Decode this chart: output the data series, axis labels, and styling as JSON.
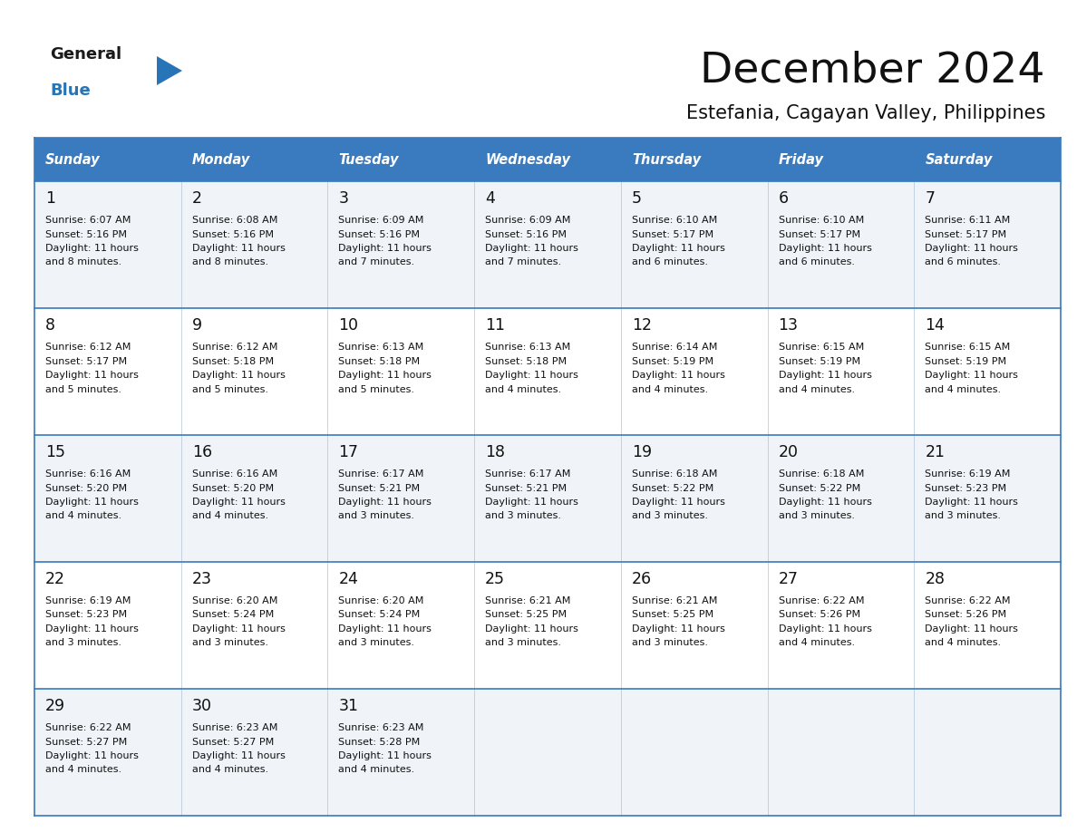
{
  "title": "December 2024",
  "subtitle": "Estefania, Cagayan Valley, Philippines",
  "header_color": "#3a7abf",
  "header_text_color": "#ffffff",
  "cell_bg_even": "#f0f4f8",
  "cell_bg_odd": "#ffffff",
  "border_color": "#3a7abf",
  "day_headers": [
    "Sunday",
    "Monday",
    "Tuesday",
    "Wednesday",
    "Thursday",
    "Friday",
    "Saturday"
  ],
  "days": [
    {
      "day": 1,
      "col": 0,
      "row": 0,
      "sunrise": "6:07 AM",
      "sunset": "5:16 PM",
      "daylight": "11 hours",
      "daylight2": "and 8 minutes."
    },
    {
      "day": 2,
      "col": 1,
      "row": 0,
      "sunrise": "6:08 AM",
      "sunset": "5:16 PM",
      "daylight": "11 hours",
      "daylight2": "and 8 minutes."
    },
    {
      "day": 3,
      "col": 2,
      "row": 0,
      "sunrise": "6:09 AM",
      "sunset": "5:16 PM",
      "daylight": "11 hours",
      "daylight2": "and 7 minutes."
    },
    {
      "day": 4,
      "col": 3,
      "row": 0,
      "sunrise": "6:09 AM",
      "sunset": "5:16 PM",
      "daylight": "11 hours",
      "daylight2": "and 7 minutes."
    },
    {
      "day": 5,
      "col": 4,
      "row": 0,
      "sunrise": "6:10 AM",
      "sunset": "5:17 PM",
      "daylight": "11 hours",
      "daylight2": "and 6 minutes."
    },
    {
      "day": 6,
      "col": 5,
      "row": 0,
      "sunrise": "6:10 AM",
      "sunset": "5:17 PM",
      "daylight": "11 hours",
      "daylight2": "and 6 minutes."
    },
    {
      "day": 7,
      "col": 6,
      "row": 0,
      "sunrise": "6:11 AM",
      "sunset": "5:17 PM",
      "daylight": "11 hours",
      "daylight2": "and 6 minutes."
    },
    {
      "day": 8,
      "col": 0,
      "row": 1,
      "sunrise": "6:12 AM",
      "sunset": "5:17 PM",
      "daylight": "11 hours",
      "daylight2": "and 5 minutes."
    },
    {
      "day": 9,
      "col": 1,
      "row": 1,
      "sunrise": "6:12 AM",
      "sunset": "5:18 PM",
      "daylight": "11 hours",
      "daylight2": "and 5 minutes."
    },
    {
      "day": 10,
      "col": 2,
      "row": 1,
      "sunrise": "6:13 AM",
      "sunset": "5:18 PM",
      "daylight": "11 hours",
      "daylight2": "and 5 minutes."
    },
    {
      "day": 11,
      "col": 3,
      "row": 1,
      "sunrise": "6:13 AM",
      "sunset": "5:18 PM",
      "daylight": "11 hours",
      "daylight2": "and 4 minutes."
    },
    {
      "day": 12,
      "col": 4,
      "row": 1,
      "sunrise": "6:14 AM",
      "sunset": "5:19 PM",
      "daylight": "11 hours",
      "daylight2": "and 4 minutes."
    },
    {
      "day": 13,
      "col": 5,
      "row": 1,
      "sunrise": "6:15 AM",
      "sunset": "5:19 PM",
      "daylight": "11 hours",
      "daylight2": "and 4 minutes."
    },
    {
      "day": 14,
      "col": 6,
      "row": 1,
      "sunrise": "6:15 AM",
      "sunset": "5:19 PM",
      "daylight": "11 hours",
      "daylight2": "and 4 minutes."
    },
    {
      "day": 15,
      "col": 0,
      "row": 2,
      "sunrise": "6:16 AM",
      "sunset": "5:20 PM",
      "daylight": "11 hours",
      "daylight2": "and 4 minutes."
    },
    {
      "day": 16,
      "col": 1,
      "row": 2,
      "sunrise": "6:16 AM",
      "sunset": "5:20 PM",
      "daylight": "11 hours",
      "daylight2": "and 4 minutes."
    },
    {
      "day": 17,
      "col": 2,
      "row": 2,
      "sunrise": "6:17 AM",
      "sunset": "5:21 PM",
      "daylight": "11 hours",
      "daylight2": "and 3 minutes."
    },
    {
      "day": 18,
      "col": 3,
      "row": 2,
      "sunrise": "6:17 AM",
      "sunset": "5:21 PM",
      "daylight": "11 hours",
      "daylight2": "and 3 minutes."
    },
    {
      "day": 19,
      "col": 4,
      "row": 2,
      "sunrise": "6:18 AM",
      "sunset": "5:22 PM",
      "daylight": "11 hours",
      "daylight2": "and 3 minutes."
    },
    {
      "day": 20,
      "col": 5,
      "row": 2,
      "sunrise": "6:18 AM",
      "sunset": "5:22 PM",
      "daylight": "11 hours",
      "daylight2": "and 3 minutes."
    },
    {
      "day": 21,
      "col": 6,
      "row": 2,
      "sunrise": "6:19 AM",
      "sunset": "5:23 PM",
      "daylight": "11 hours",
      "daylight2": "and 3 minutes."
    },
    {
      "day": 22,
      "col": 0,
      "row": 3,
      "sunrise": "6:19 AM",
      "sunset": "5:23 PM",
      "daylight": "11 hours",
      "daylight2": "and 3 minutes."
    },
    {
      "day": 23,
      "col": 1,
      "row": 3,
      "sunrise": "6:20 AM",
      "sunset": "5:24 PM",
      "daylight": "11 hours",
      "daylight2": "and 3 minutes."
    },
    {
      "day": 24,
      "col": 2,
      "row": 3,
      "sunrise": "6:20 AM",
      "sunset": "5:24 PM",
      "daylight": "11 hours",
      "daylight2": "and 3 minutes."
    },
    {
      "day": 25,
      "col": 3,
      "row": 3,
      "sunrise": "6:21 AM",
      "sunset": "5:25 PM",
      "daylight": "11 hours",
      "daylight2": "and 3 minutes."
    },
    {
      "day": 26,
      "col": 4,
      "row": 3,
      "sunrise": "6:21 AM",
      "sunset": "5:25 PM",
      "daylight": "11 hours",
      "daylight2": "and 3 minutes."
    },
    {
      "day": 27,
      "col": 5,
      "row": 3,
      "sunrise": "6:22 AM",
      "sunset": "5:26 PM",
      "daylight": "11 hours",
      "daylight2": "and 4 minutes."
    },
    {
      "day": 28,
      "col": 6,
      "row": 3,
      "sunrise": "6:22 AM",
      "sunset": "5:26 PM",
      "daylight": "11 hours",
      "daylight2": "and 4 minutes."
    },
    {
      "day": 29,
      "col": 0,
      "row": 4,
      "sunrise": "6:22 AM",
      "sunset": "5:27 PM",
      "daylight": "11 hours",
      "daylight2": "and 4 minutes."
    },
    {
      "day": 30,
      "col": 1,
      "row": 4,
      "sunrise": "6:23 AM",
      "sunset": "5:27 PM",
      "daylight": "11 hours",
      "daylight2": "and 4 minutes."
    },
    {
      "day": 31,
      "col": 2,
      "row": 4,
      "sunrise": "6:23 AM",
      "sunset": "5:28 PM",
      "daylight": "11 hours",
      "daylight2": "and 4 minutes."
    }
  ],
  "logo_color_general": "#1a1a1a",
  "logo_color_blue": "#2775b6",
  "logo_triangle_color": "#2775b6"
}
